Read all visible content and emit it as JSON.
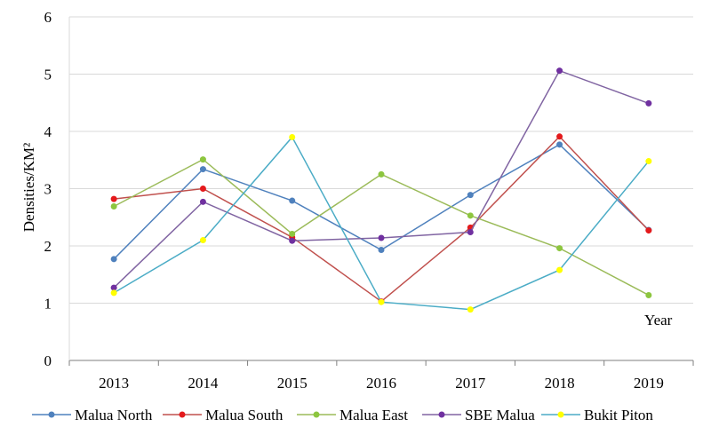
{
  "chart_data": {
    "type": "line",
    "title": "",
    "xlabel": "Year",
    "ylabel": "Densities/KM²",
    "categories": [
      "2013",
      "2014",
      "2015",
      "2016",
      "2017",
      "2018",
      "2019"
    ],
    "ylim": [
      0,
      6
    ],
    "yticks": [
      0,
      1,
      2,
      3,
      4,
      5,
      6
    ],
    "grid": "horizontal",
    "legend_position": "bottom",
    "series": [
      {
        "name": "Malua North",
        "line_color": "#4f81bd",
        "marker_color": "#4f81bd",
        "values": [
          1.77,
          3.34,
          2.79,
          1.93,
          2.89,
          3.77,
          2.28
        ]
      },
      {
        "name": "Malua South",
        "line_color": "#c0504d",
        "marker_color": "#e41a1c",
        "values": [
          2.82,
          3.0,
          2.15,
          1.03,
          2.32,
          3.91,
          2.27
        ]
      },
      {
        "name": "Malua East",
        "line_color": "#9bbb59",
        "marker_color": "#8dc63f",
        "values": [
          2.69,
          3.51,
          2.21,
          3.25,
          2.53,
          1.96,
          1.14
        ]
      },
      {
        "name": "SBE Malua",
        "line_color": "#8064a2",
        "marker_color": "#7030a0",
        "values": [
          1.27,
          2.77,
          2.09,
          2.14,
          2.24,
          5.06,
          4.49
        ]
      },
      {
        "name": "Bukit Piton",
        "line_color": "#4bacc6",
        "marker_color": "#ffff00",
        "values": [
          1.18,
          2.1,
          3.9,
          1.02,
          0.89,
          1.58,
          3.48
        ]
      }
    ]
  }
}
